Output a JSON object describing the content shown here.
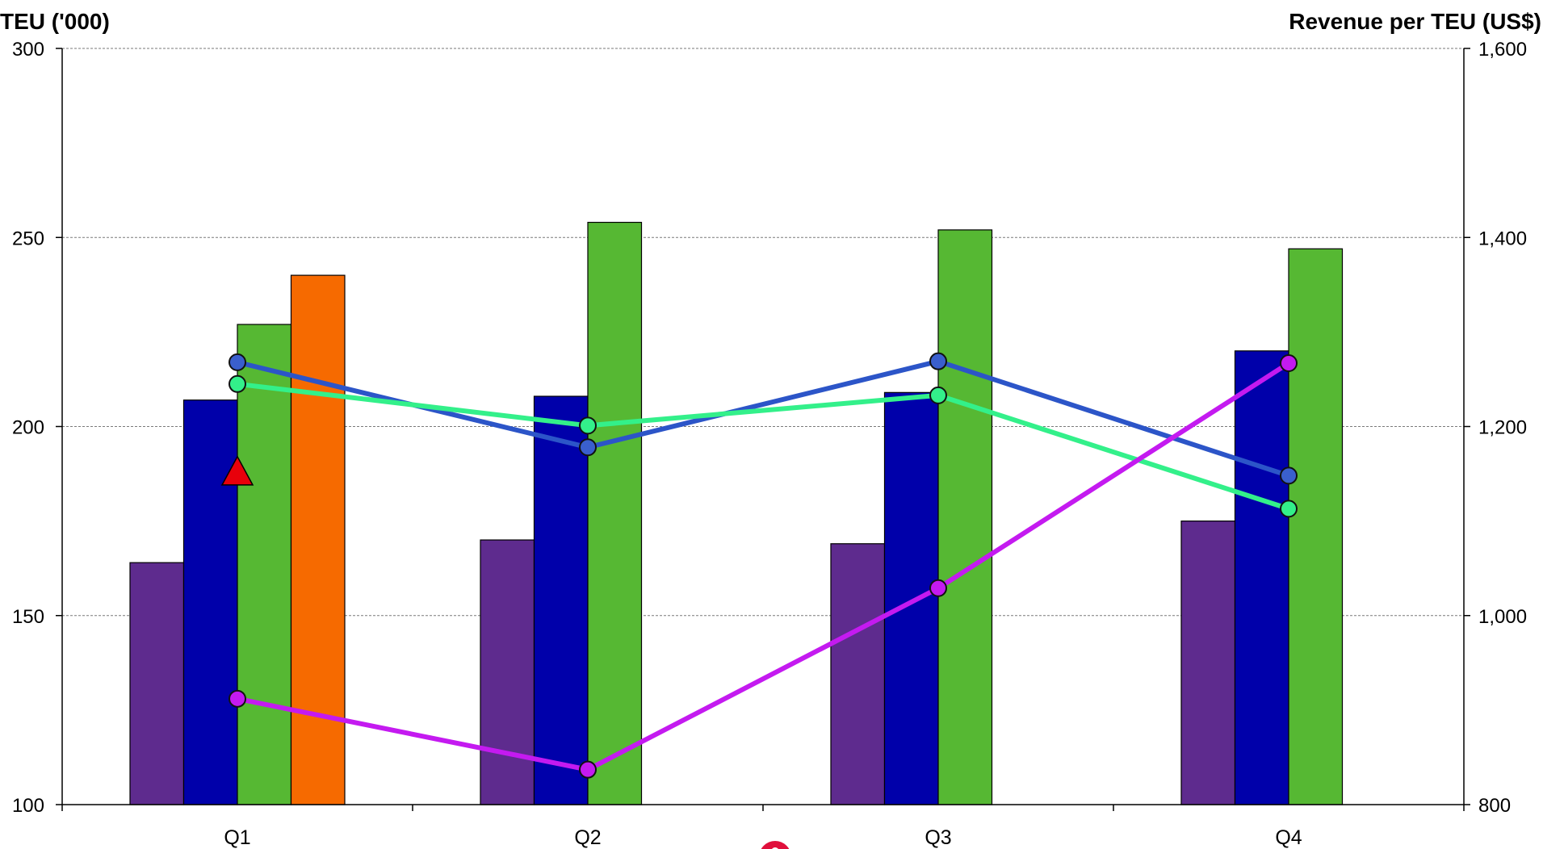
{
  "chart_data": {
    "type": "bar",
    "title": "",
    "categories": [
      "Q1",
      "Q2",
      "Q3",
      "Q4"
    ],
    "y_left": {
      "label": "TEU ('000)",
      "range": [
        100,
        300
      ],
      "ticks": [
        "100",
        "150",
        "200",
        "250",
        "300"
      ],
      "tick_values": [
        100,
        150,
        200,
        250,
        300
      ]
    },
    "y_right": {
      "label": "Revenue per TEU (US$)",
      "range": [
        800,
        1600
      ],
      "ticks": [
        "800",
        "1,000",
        "1,200",
        "1,400",
        "1,600"
      ],
      "tick_values": [
        800,
        1000,
        1200,
        1400,
        1600
      ]
    },
    "grid": true,
    "bar_series": [
      {
        "color": "#5E2B8E",
        "values": [
          164,
          170,
          169,
          175
        ]
      },
      {
        "color": "#0000AA",
        "values": [
          207,
          208,
          209,
          220
        ]
      },
      {
        "color": "#56B833",
        "values": [
          227,
          254,
          252,
          247
        ]
      },
      {
        "color": "#F66A00",
        "values": [
          240,
          null,
          null,
          null
        ]
      }
    ],
    "line_series": [
      {
        "axis": "right",
        "color": "#2C55C8",
        "marker_color": "#3A5FCD",
        "values": [
          1268,
          1178,
          1269,
          1148
        ]
      },
      {
        "axis": "right",
        "color": "#33F08A",
        "marker_color": "#33F08A",
        "values": [
          1245,
          1201,
          1233,
          1113
        ]
      },
      {
        "axis": "right",
        "color": "#C41AF0",
        "marker_color": "#C41AF0",
        "values": [
          912,
          837,
          1029,
          1267
        ]
      }
    ],
    "markers": [
      {
        "shape": "triangle",
        "color": "#E8000B",
        "category": "Q1",
        "value": 188,
        "axis": "left"
      }
    ],
    "logo_color": "#E0103C"
  }
}
